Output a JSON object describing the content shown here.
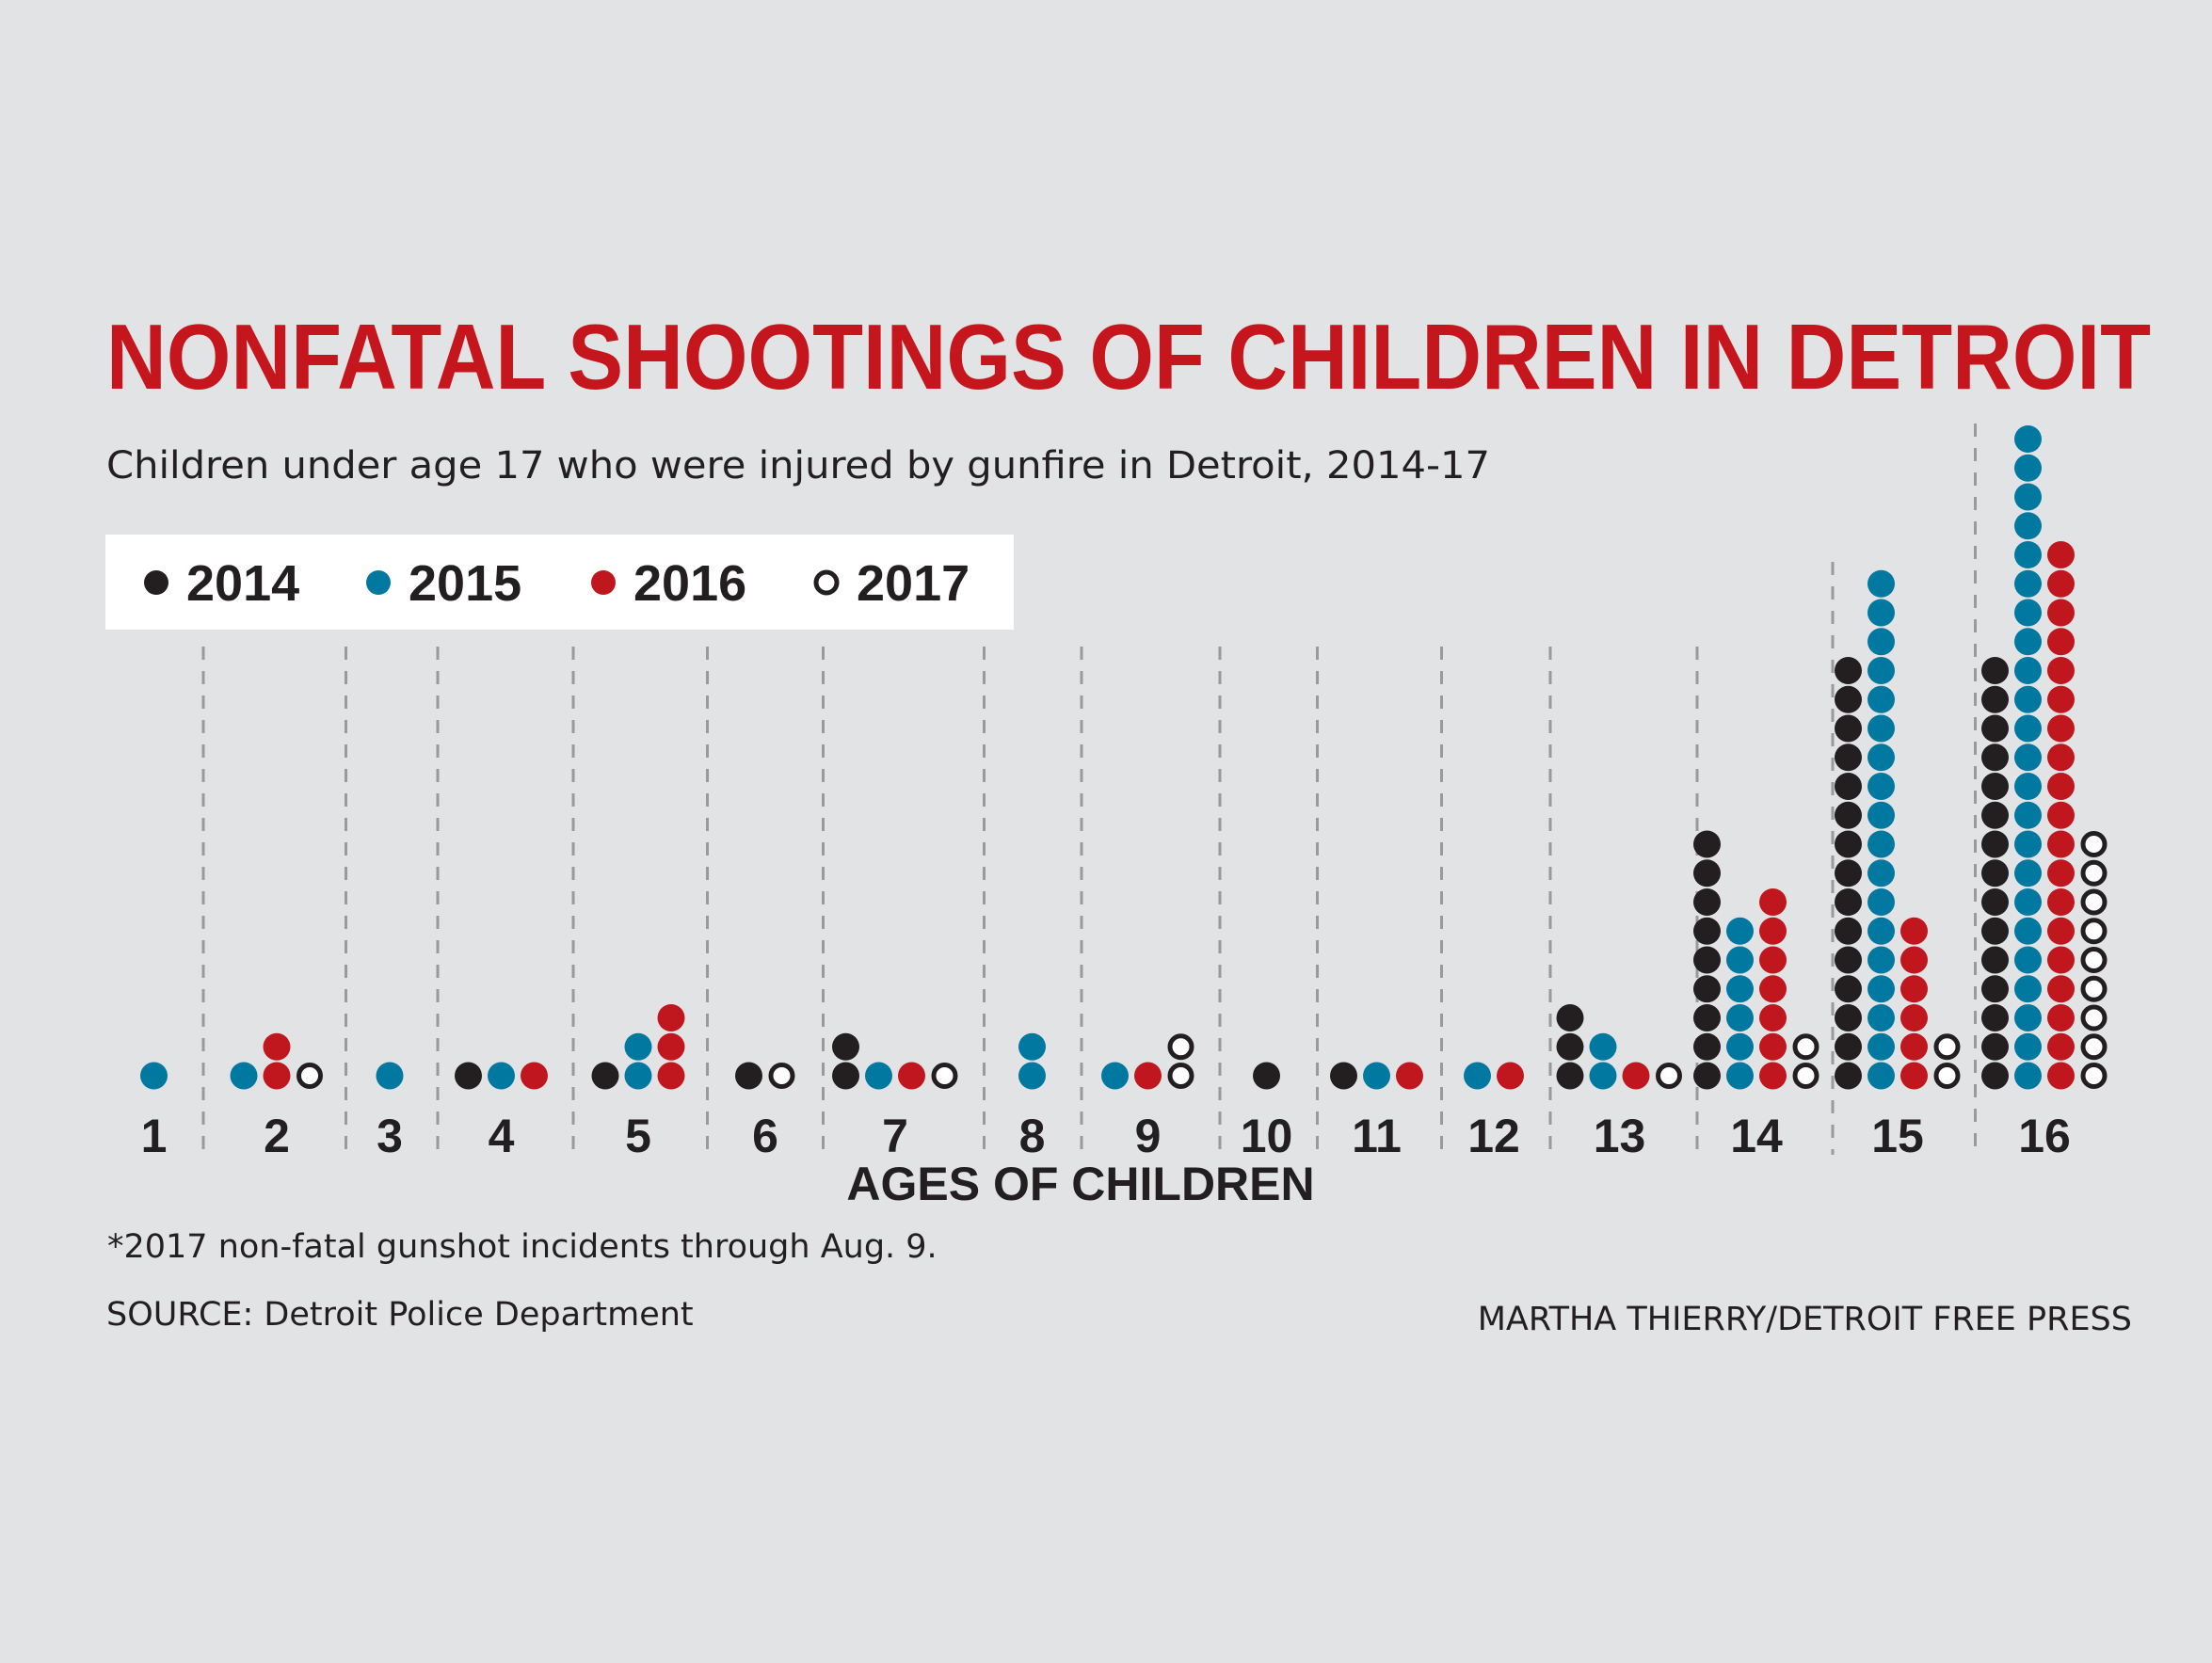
{
  "chart_data": {
    "type": "dot-plot",
    "title": "NONFATAL SHOOTINGS OF CHILDREN IN DETROIT",
    "subtitle": "Children under age 17 who were injured by gunfire in Detroit, 2014-17",
    "xlabel": "AGES OF CHILDREN",
    "categories": [
      "1",
      "2",
      "3",
      "4",
      "5",
      "6",
      "7",
      "8",
      "9",
      "10",
      "11",
      "12",
      "13",
      "14",
      "15",
      "16"
    ],
    "series": [
      {
        "name": "2014",
        "color": "#231f20",
        "style": "filled",
        "values": [
          0,
          0,
          0,
          1,
          1,
          1,
          2,
          0,
          0,
          1,
          1,
          0,
          3,
          9,
          15,
          15
        ]
      },
      {
        "name": "2015",
        "color": "#0078a0",
        "style": "filled",
        "values": [
          1,
          1,
          1,
          1,
          2,
          0,
          1,
          2,
          1,
          0,
          1,
          1,
          2,
          6,
          18,
          23
        ]
      },
      {
        "name": "2016",
        "color": "#c0161d",
        "style": "filled",
        "values": [
          0,
          2,
          0,
          1,
          3,
          0,
          1,
          0,
          1,
          0,
          1,
          1,
          1,
          7,
          6,
          19
        ]
      },
      {
        "name": "2017",
        "color": "#ffffff",
        "style": "open",
        "values": [
          0,
          1,
          0,
          0,
          0,
          1,
          1,
          0,
          2,
          0,
          0,
          0,
          1,
          2,
          2,
          9
        ]
      }
    ],
    "legend": "top-left",
    "grid": "dashed vertical separators between ages"
  },
  "footnote": "*2017 non-fatal gunshot incidents through Aug. 9.",
  "source": "SOURCE: Detroit Police Department",
  "credit": "MARTHA THIERRY/DETROIT FREE PRESS"
}
